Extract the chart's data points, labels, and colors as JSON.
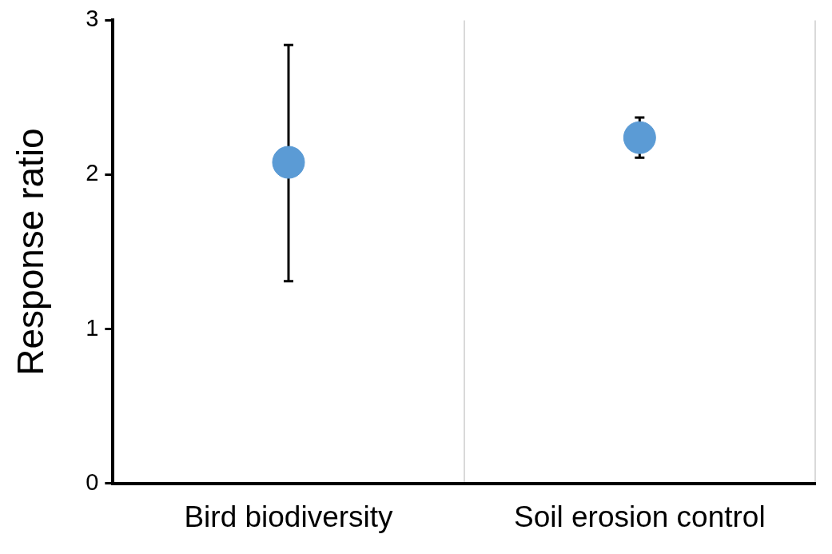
{
  "chart_data": {
    "type": "scatter",
    "ylabel": "Response ratio",
    "categories": [
      "Bird biodiversity",
      "Soil erosion control"
    ],
    "series": [
      {
        "color": "#5b9bd5",
        "values": [
          2.08,
          2.24
        ],
        "errors": [
          [
            1.31,
            2.84
          ],
          [
            2.11,
            2.37
          ]
        ]
      }
    ],
    "ylim": [
      0,
      3
    ],
    "yticks": [
      0,
      1,
      2,
      3
    ],
    "grid": "x",
    "legend": false,
    "marker": "circle"
  }
}
